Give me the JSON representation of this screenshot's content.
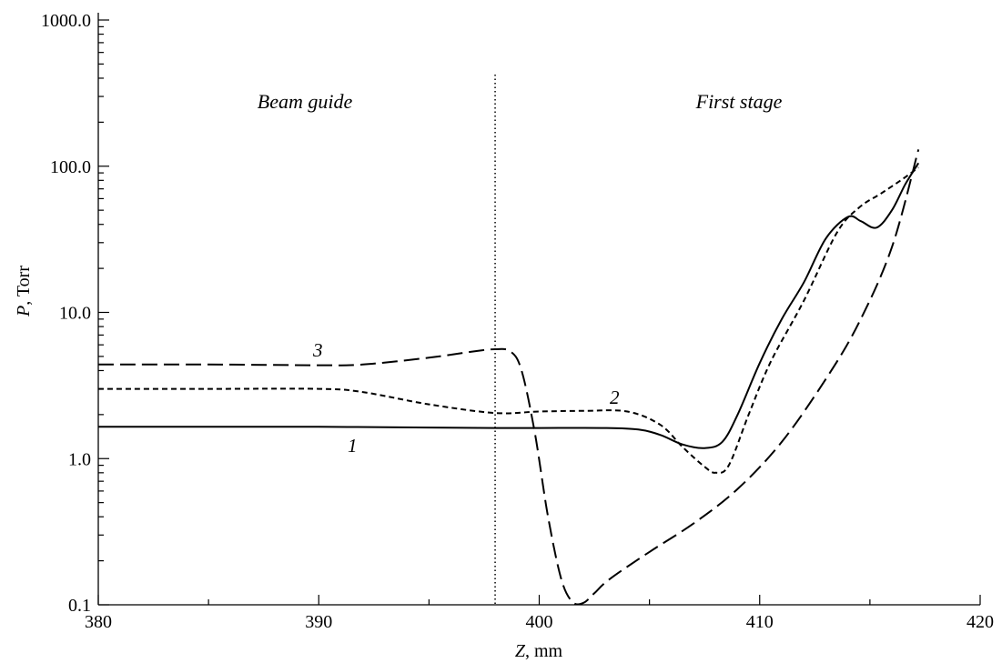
{
  "chart_data": {
    "type": "line",
    "xlabel": {
      "var": "Z",
      "unit": ", mm"
    },
    "ylabel": {
      "var": "P",
      "unit": ", Torr"
    },
    "xlim": [
      380,
      420
    ],
    "ylim": [
      0.1,
      1000
    ],
    "yscale": "log",
    "x_ticks": [
      "380",
      "390",
      "400",
      "410",
      "420"
    ],
    "y_ticks": [
      "0.1",
      "1.0",
      "10.0",
      "100.0",
      "1000.0"
    ],
    "grid": false,
    "divider_x": 398,
    "regions": [
      "Beam guide",
      "First stage"
    ],
    "series": [
      {
        "name": "1",
        "dash": "solid",
        "x": [
          380,
          385,
          390,
          395,
          398,
          400,
          403,
          404.5,
          405.5,
          406.5,
          407.5,
          408.3,
          409,
          410,
          411,
          412,
          413,
          414,
          414.6,
          415.3,
          416,
          416.6,
          417.2
        ],
        "y": [
          1.65,
          1.65,
          1.65,
          1.63,
          1.62,
          1.62,
          1.62,
          1.58,
          1.45,
          1.25,
          1.18,
          1.3,
          2.0,
          4.5,
          9,
          16,
          32,
          45,
          42,
          38,
          50,
          75,
          105
        ]
      },
      {
        "name": "2",
        "dash": "short-dash",
        "x": [
          380,
          385,
          390,
          392,
          395,
          398,
          400,
          402,
          404,
          405.5,
          406.5,
          407.5,
          408,
          408.6,
          409.5,
          410.5,
          412,
          413.5,
          414.5,
          415.5,
          416.5,
          417.2
        ],
        "y": [
          3.0,
          3.0,
          3.0,
          2.85,
          2.35,
          2.05,
          2.1,
          2.12,
          2.1,
          1.7,
          1.2,
          0.88,
          0.8,
          0.9,
          2.0,
          4.6,
          12,
          35,
          52,
          65,
          82,
          98
        ]
      },
      {
        "name": "3",
        "dash": "long-dash",
        "x": [
          380,
          385,
          390,
          392,
          395,
          397,
          398,
          398.7,
          399.2,
          399.8,
          400.4,
          401,
          401.5,
          402,
          402.5,
          403.2,
          405,
          407,
          409,
          411,
          413,
          414.5,
          416,
          417.2
        ],
        "y": [
          4.4,
          4.4,
          4.35,
          4.4,
          4.9,
          5.4,
          5.6,
          5.4,
          4.0,
          1.5,
          0.4,
          0.15,
          0.105,
          0.103,
          0.12,
          0.15,
          0.23,
          0.36,
          0.62,
          1.3,
          3.5,
          8.5,
          28,
          130
        ]
      }
    ]
  }
}
